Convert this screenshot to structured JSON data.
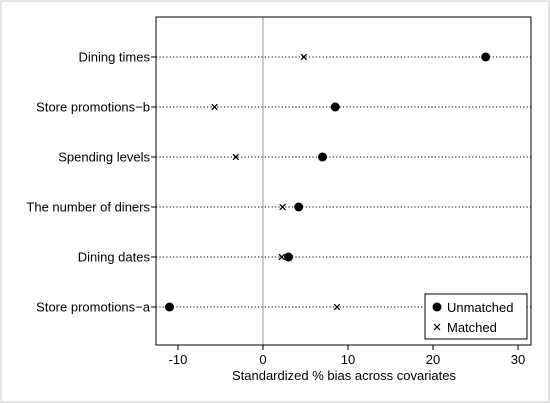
{
  "chart_data": {
    "type": "scatter",
    "title": "",
    "xlabel": "Standardized % bias across covariates",
    "ylabel": "",
    "xlim": [
      -13,
      31.5
    ],
    "xticks": [
      -10,
      0,
      10,
      20,
      30
    ],
    "xtick_labels": [
      "-10",
      "0",
      "10",
      "20",
      "30"
    ],
    "reference_line_x": 0,
    "grid": false,
    "legend_position": "bottom-right",
    "categories": [
      "Dining times",
      "Store promotions−b",
      "Spending levels",
      "The number of diners",
      "Dining dates",
      "Store promotions−a"
    ],
    "series": [
      {
        "name": "Unmatched",
        "marker": "filled-circle",
        "values": [
          26.2,
          8.5,
          7.0,
          4.2,
          3.0,
          -11.0
        ]
      },
      {
        "name": "Matched",
        "marker": "x-cross",
        "values": [
          4.8,
          -5.7,
          -3.2,
          2.3,
          2.2,
          8.7
        ]
      }
    ]
  },
  "colors": {
    "frame": "#000000",
    "background": "#ffffff",
    "reference_line": "#9e9e9e",
    "markers": "#000000"
  }
}
